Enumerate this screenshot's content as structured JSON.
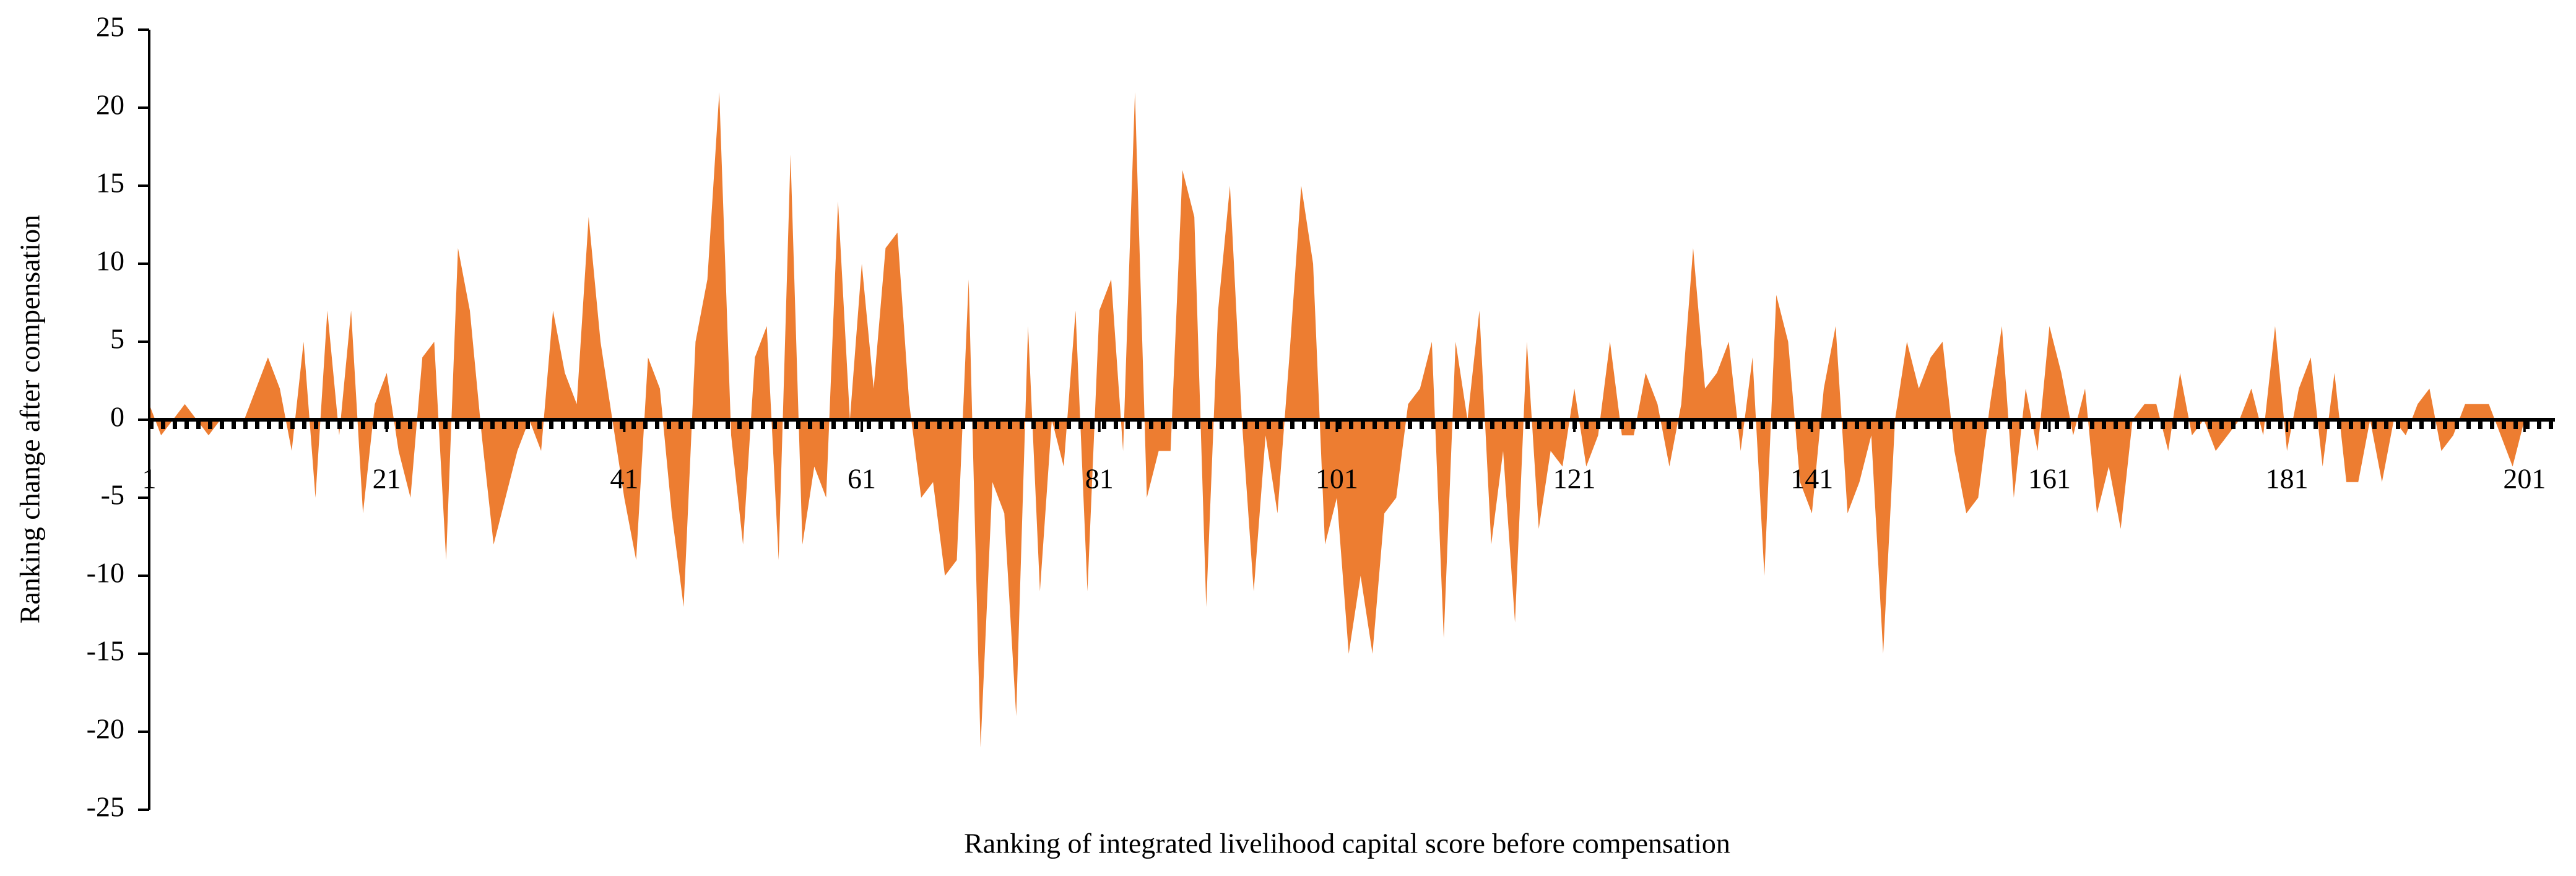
{
  "chart_data": {
    "type": "area",
    "y_label": "Ranking change after compensation",
    "x_label": "Ranking  of  integrated  livelihood  capital  score before compensation",
    "color": "#ED7D31",
    "xlim": [
      1,
      202
    ],
    "xticks": [
      1,
      21,
      41,
      61,
      81,
      101,
      121,
      141,
      161,
      181,
      201
    ],
    "ylim": [
      -25,
      25
    ],
    "yticks": [
      -25,
      -20,
      -15,
      -10,
      -5,
      0,
      5,
      10,
      15,
      20,
      25
    ],
    "x": [
      1,
      2,
      3,
      4,
      5,
      6,
      7,
      8,
      9,
      10,
      11,
      12,
      13,
      14,
      15,
      16,
      17,
      18,
      19,
      20,
      21,
      22,
      23,
      24,
      25,
      26,
      27,
      28,
      29,
      30,
      31,
      32,
      33,
      34,
      35,
      36,
      37,
      38,
      39,
      40,
      41,
      42,
      43,
      44,
      45,
      46,
      47,
      48,
      49,
      50,
      51,
      52,
      53,
      54,
      55,
      56,
      57,
      58,
      59,
      60,
      61,
      62,
      63,
      64,
      65,
      66,
      67,
      68,
      69,
      70,
      71,
      72,
      73,
      74,
      75,
      76,
      77,
      78,
      79,
      80,
      81,
      82,
      83,
      84,
      85,
      86,
      87,
      88,
      89,
      90,
      91,
      92,
      93,
      94,
      95,
      96,
      97,
      98,
      99,
      100,
      101,
      102,
      103,
      104,
      105,
      106,
      107,
      108,
      109,
      110,
      111,
      112,
      113,
      114,
      115,
      116,
      117,
      118,
      119,
      120,
      121,
      122,
      123,
      124,
      125,
      126,
      127,
      128,
      129,
      130,
      131,
      132,
      133,
      134,
      135,
      136,
      137,
      138,
      139,
      140,
      141,
      142,
      143,
      144,
      145,
      146,
      147,
      148,
      149,
      150,
      151,
      152,
      153,
      154,
      155,
      156,
      157,
      158,
      159,
      160,
      161,
      162,
      163,
      164,
      165,
      166,
      167,
      168,
      169,
      170,
      171,
      172,
      173,
      174,
      175,
      176,
      177,
      178,
      179,
      180,
      181,
      182,
      183,
      184,
      185,
      186,
      187,
      188,
      189,
      190,
      191,
      192,
      193,
      194,
      195,
      196,
      197,
      198,
      199,
      200,
      201
    ],
    "values": [
      1,
      -1,
      0,
      1,
      0,
      -1,
      0,
      0,
      0,
      2,
      4,
      2,
      -2,
      5,
      -5,
      7,
      -1,
      7,
      -6,
      1,
      3,
      -2,
      -5,
      4,
      5,
      -9,
      11,
      7,
      -1,
      -8,
      -5,
      -2,
      0,
      -2,
      7,
      3,
      1,
      13,
      5,
      0,
      -5,
      -9,
      4,
      2,
      -6,
      -12,
      5,
      9,
      21,
      -1,
      -8,
      4,
      6,
      -9,
      17,
      -8,
      -3,
      -5,
      14,
      0,
      10,
      2,
      11,
      12,
      1,
      -5,
      -4,
      -10,
      -9,
      9,
      -21,
      -4,
      -6,
      -19,
      6,
      -11,
      0,
      -3,
      7,
      -11,
      7,
      9,
      -2,
      21,
      -5,
      -2,
      -2,
      16,
      13,
      -12,
      7,
      15,
      0,
      -11,
      -1,
      -6,
      4,
      15,
      10,
      -8,
      -5,
      -15,
      -10,
      -15,
      -6,
      -5,
      1,
      2,
      5,
      -14,
      5,
      0,
      7,
      -8,
      -2,
      -13,
      5,
      -7,
      -2,
      -3,
      2,
      -3,
      -1,
      5,
      -1,
      -1,
      3,
      1,
      -3,
      1,
      11,
      2,
      3,
      5,
      -2,
      4,
      -10,
      8,
      5,
      -4,
      -6,
      2,
      6,
      -6,
      -4,
      -1,
      -15,
      0,
      5,
      2,
      4,
      5,
      -2,
      -6,
      -5,
      1,
      6,
      -5,
      2,
      -2,
      6,
      3,
      -1,
      2,
      -6,
      -3,
      -7,
      0,
      1,
      1,
      -2,
      3,
      -1,
      0,
      -2,
      -1,
      0,
      2,
      -1,
      6,
      -2,
      2,
      4,
      -3,
      3,
      -4,
      -4,
      0,
      -4,
      0,
      -1,
      1,
      2,
      -2,
      -1,
      1,
      1,
      1,
      -1,
      -3,
      0
    ]
  }
}
